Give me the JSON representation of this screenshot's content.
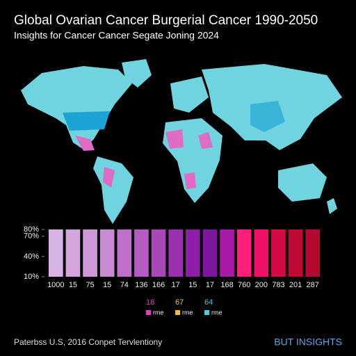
{
  "title": "Global Ovarian Cancer Burgerial Cancer 1990-2050",
  "subtitle": "Insights for Cancer Cancer Segate Joning 2024",
  "chart_data": {
    "type": "bar",
    "categories": [
      "1000",
      "15",
      "75",
      "15",
      "74",
      "136",
      "166",
      "17",
      "15",
      "17",
      "168",
      "760",
      "200",
      "783",
      "201",
      "287"
    ],
    "values": [
      80,
      80,
      80,
      80,
      80,
      80,
      80,
      80,
      80,
      80,
      80,
      80,
      80,
      80,
      80,
      80
    ],
    "colors": [
      "#d9b3e3",
      "#d4a5de",
      "#cf96d8",
      "#c98ad4",
      "#c06ecb",
      "#b55ac3",
      "#a946b8",
      "#9a30ad",
      "#8c1fa6",
      "#7e169f",
      "#a61aa8",
      "#ff1f7a",
      "#f0106a",
      "#d40a45",
      "#c00a35",
      "#b50a30"
    ],
    "ylim": [
      10,
      80
    ],
    "yticks": [
      {
        "value": 80,
        "label": "80%"
      },
      {
        "value": 70,
        "label": "70%"
      },
      {
        "value": 40,
        "label": "40%"
      },
      {
        "value": 10,
        "label": "10%"
      }
    ],
    "legend": [
      {
        "label": "18",
        "name": "rme",
        "color": "#e040c0"
      },
      {
        "label": "67",
        "name": "rme",
        "color": "#f0c030"
      },
      {
        "label": "64",
        "name": "rme",
        "color": "#50c8e0"
      }
    ]
  },
  "footer": "Paterbss U.S, 2016 Conpet Tervlentiony",
  "brand": "BUT INSIGHTS"
}
